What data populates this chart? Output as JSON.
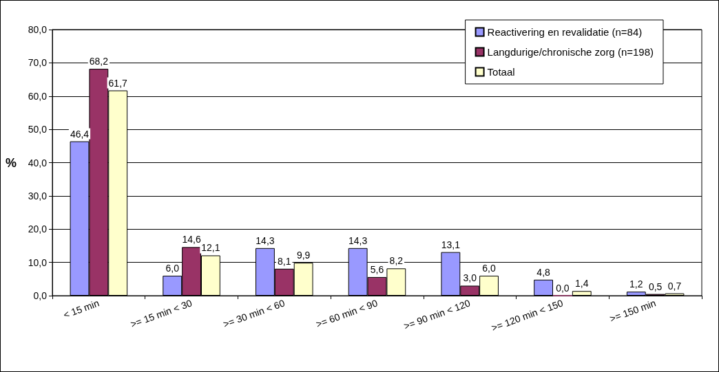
{
  "chart_data": {
    "type": "bar",
    "ylabel": "%",
    "categories": [
      "< 15 min",
      ">= 15 min < 30",
      ">= 30 min < 60",
      ">= 60 min < 90",
      ">= 90 min < 120",
      ">= 120 min < 150",
      ">= 150 min"
    ],
    "series": [
      {
        "name": "Reactivering en revalidatie (n=84)",
        "color": "#9999ff",
        "values": [
          46.4,
          6.0,
          14.3,
          14.3,
          13.1,
          4.8,
          1.2
        ],
        "value_labels": [
          "46,4",
          "6,0",
          "14,3",
          "14,3",
          "13,1",
          "4,8",
          "1,2"
        ]
      },
      {
        "name": "Langdurige/chronische zorg (n=198)",
        "color": "#993366",
        "values": [
          68.2,
          14.6,
          8.1,
          5.6,
          3.0,
          0.0,
          0.5
        ],
        "value_labels": [
          "68,2",
          "14,6",
          "8,1",
          "5,6",
          "3,0",
          "0,0",
          "0,5"
        ]
      },
      {
        "name": "Totaal",
        "color": "#ffffcc",
        "values": [
          61.7,
          12.1,
          9.9,
          8.2,
          6.0,
          1.4,
          0.7
        ],
        "value_labels": [
          "61,7",
          "12,1",
          "9,9",
          "8,2",
          "6,0",
          "1,4",
          "0,7"
        ]
      }
    ],
    "ylim": [
      0,
      80
    ],
    "yticks": [
      {
        "value": 0,
        "label": "0,0"
      },
      {
        "value": 10,
        "label": "10,0"
      },
      {
        "value": 20,
        "label": "20,0"
      },
      {
        "value": 30,
        "label": "30,0"
      },
      {
        "value": 40,
        "label": "40,0"
      },
      {
        "value": 50,
        "label": "50,0"
      },
      {
        "value": 60,
        "label": "60,0"
      },
      {
        "value": 70,
        "label": "70,0"
      },
      {
        "value": 80,
        "label": "80,0"
      }
    ],
    "grid": "y",
    "legend": "top right"
  }
}
